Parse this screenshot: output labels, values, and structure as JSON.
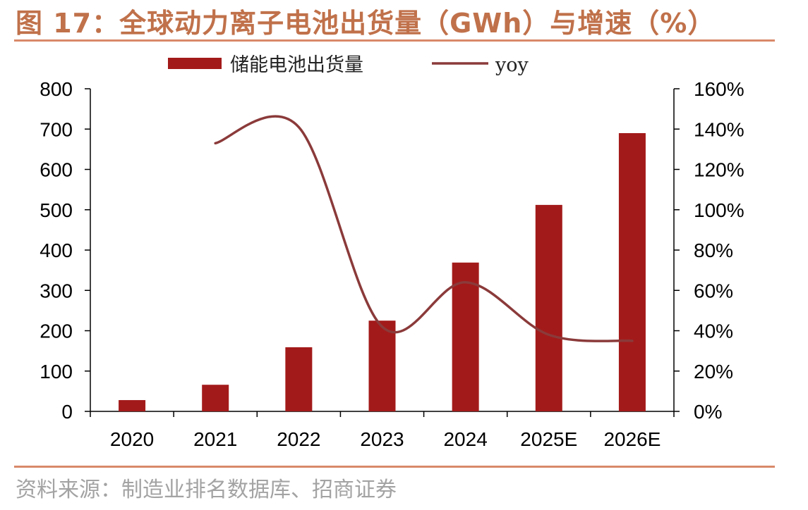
{
  "title": "图 17：全球动力离子电池出货量（GWh）与增速（%）",
  "source": "资料来源：制造业排名数据库、招商证券",
  "colors": {
    "bar": "#a31a1a",
    "line": "#8b3a3a",
    "accent": "#d9896a",
    "axis": "#000000"
  },
  "chart_data": {
    "type": "bar",
    "categories": [
      "2020",
      "2021",
      "2022",
      "2023",
      "2024",
      "2025E",
      "2026E"
    ],
    "series": [
      {
        "name": "储能电池出货量",
        "type": "bar",
        "axis": "left",
        "values": [
          28,
          66,
          159,
          225,
          369,
          512,
          690
        ]
      },
      {
        "name": "yoy",
        "type": "line",
        "axis": "right",
        "values": [
          null,
          133,
          141,
          42,
          64,
          38,
          35
        ]
      }
    ],
    "y_left": {
      "min": 0,
      "max": 800,
      "ticks": [
        "0",
        "100",
        "200",
        "300",
        "400",
        "500",
        "600",
        "700",
        "800"
      ]
    },
    "y_right": {
      "min": 0,
      "max": 160,
      "ticks": [
        "0%",
        "20%",
        "40%",
        "60%",
        "80%",
        "100%",
        "120%",
        "140%",
        "160%"
      ]
    },
    "legend_position": "top",
    "grid": false
  }
}
